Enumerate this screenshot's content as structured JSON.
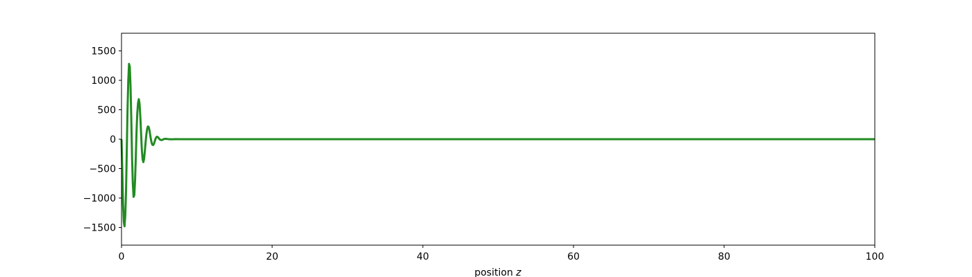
{
  "chart_data": {
    "type": "line",
    "title": "",
    "xlabel": "position ",
    "xlabel_var": "z",
    "ylabel": "",
    "xlim": [
      0,
      100
    ],
    "ylim": [
      -1800,
      1800
    ],
    "xticks": [
      0,
      20,
      40,
      60,
      80,
      100
    ],
    "yticks": [
      -1500,
      -1000,
      -500,
      0,
      500,
      1000,
      1500
    ],
    "xtick_labels": [
      "0",
      "20",
      "40",
      "60",
      "80",
      "100"
    ],
    "ytick_labels": [
      "−1500",
      "−1000",
      "−500",
      "0",
      "500",
      "1000",
      "1500"
    ],
    "grid": false,
    "series": [
      {
        "color": "#228B22",
        "x": [
          0,
          0.1,
          0.2,
          0.3,
          0.4,
          0.5,
          0.6,
          0.7,
          0.8,
          0.9,
          1.0,
          1.1,
          1.2,
          1.3,
          1.4,
          1.5,
          1.6,
          1.7,
          1.8,
          1.9,
          2.0,
          2.1,
          2.2,
          2.3,
          2.4,
          2.5,
          2.6,
          2.7,
          2.8,
          2.9,
          3.0,
          3.1,
          3.2,
          3.3,
          3.4,
          3.5,
          3.6,
          3.7,
          3.8,
          3.9,
          4.0,
          4.1,
          4.2,
          4.3,
          4.4,
          4.5,
          4.6,
          4.7,
          4.8,
          4.9,
          5.0,
          5.1,
          5.2,
          5.3,
          5.4,
          5.5,
          5.6,
          5.7,
          5.8,
          5.9,
          6.0,
          6.2,
          6.4,
          6.6,
          6.8,
          7.0,
          7.2,
          7.5,
          7.8,
          8.2,
          8.6,
          9.0,
          10.0,
          12.0,
          15.0,
          20.0,
          30.0,
          40.0,
          50.0,
          60.0,
          70.0,
          80.0,
          90.0,
          100.0
        ],
        "y": [
          0,
          -500,
          -1100,
          -1400,
          -1480,
          -1300,
          -900,
          -200,
          500,
          1000,
          1280,
          1230,
          900,
          350,
          -300,
          -750,
          -980,
          -950,
          -700,
          -300,
          150,
          450,
          620,
          680,
          600,
          380,
          100,
          -180,
          -340,
          -390,
          -330,
          -200,
          -50,
          80,
          170,
          215,
          210,
          160,
          80,
          0,
          -60,
          -95,
          -100,
          -80,
          -40,
          0,
          30,
          42,
          38,
          25,
          8,
          -5,
          -12,
          -15,
          -12,
          -6,
          0,
          5,
          7,
          6,
          4,
          1,
          -1,
          -2,
          -1,
          0,
          1,
          0.5,
          0,
          0,
          0,
          0,
          0,
          0,
          0,
          0,
          0,
          0,
          0,
          0,
          0,
          0,
          0,
          0
        ]
      }
    ]
  }
}
